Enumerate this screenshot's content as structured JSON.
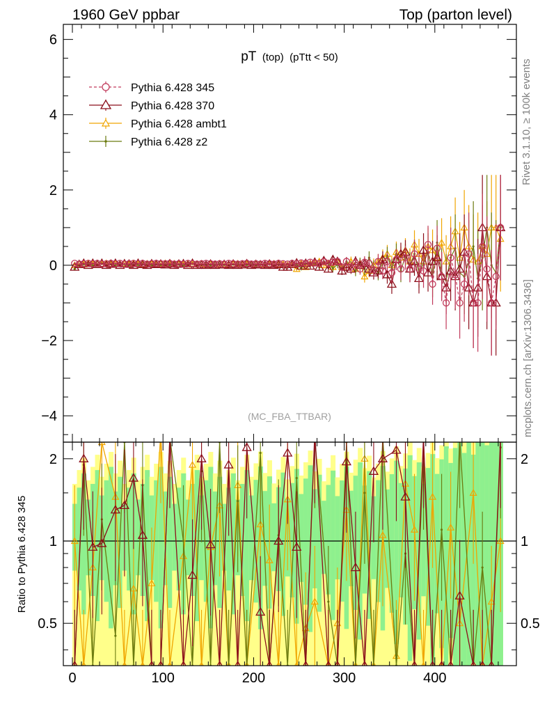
{
  "header": {
    "left": "1960 GeV ppbar",
    "right": "Top (parton level)"
  },
  "side_labels": {
    "rivet": "Rivet 3.1.10, ≥ 100k events",
    "mcplots": "mcplots.cern.ch [arXiv:1306.3436]"
  },
  "chart_data": {
    "type": "line",
    "title_main": "pT",
    "title_sub": "(top)",
    "title_cut": "(pTtt < 50)",
    "analysis": "(MC_FBA_TTBAR)",
    "xlim": [
      -10,
      490
    ],
    "ylim": [
      -4.7,
      6.4
    ],
    "yticks": [
      -4,
      -2,
      0,
      2,
      4,
      6
    ],
    "xticks": [
      0,
      100,
      200,
      300,
      400
    ],
    "ratio_ylabel": "Ratio to Pythia 6.428 345",
    "ratio_ylim": [
      0.35,
      2.3
    ],
    "ratio_yticks": [
      0.5,
      1,
      2
    ],
    "ratio_ytick_labels": [
      "0.5",
      "1",
      "2"
    ],
    "legend_position": "top-left",
    "colors": {
      "p345": "#c0395a",
      "p370": "#8b0e1a",
      "ambt1": "#f0a500",
      "z2": "#6b7a0f",
      "band_green": "#8ef08e",
      "band_yellow": "#ffff8a"
    },
    "series": [
      {
        "name": "Pythia 6.428 345",
        "key": "p345",
        "marker": "circle",
        "dashed": true
      },
      {
        "name": "Pythia 6.428 370",
        "key": "p370",
        "marker": "triangle",
        "dashed": false
      },
      {
        "name": "Pythia 6.428 ambt1",
        "key": "ambt1",
        "marker": "triangle-small",
        "dashed": false
      },
      {
        "name": "Pythia 6.428 z2",
        "key": "z2",
        "marker": "dot",
        "dashed": false
      }
    ],
    "x": [
      2.5,
      7.5,
      12.5,
      17.5,
      22.5,
      27.5,
      32.5,
      37.5,
      42.5,
      47.5,
      52.5,
      57.5,
      62.5,
      67.5,
      72.5,
      77.5,
      82.5,
      87.5,
      92.5,
      97.5,
      102.5,
      107.5,
      112.5,
      117.5,
      122.5,
      127.5,
      132.5,
      137.5,
      142.5,
      147.5,
      152.5,
      157.5,
      162.5,
      167.5,
      172.5,
      177.5,
      182.5,
      187.5,
      192.5,
      197.5,
      202.5,
      207.5,
      212.5,
      217.5,
      222.5,
      227.5,
      232.5,
      237.5,
      242.5,
      247.5,
      252.5,
      257.5,
      262.5,
      267.5,
      272.5,
      277.5,
      282.5,
      287.5,
      292.5,
      297.5,
      302.5,
      307.5,
      312.5,
      317.5,
      322.5,
      327.5,
      332.5,
      337.5,
      342.5,
      347.5,
      352.5,
      357.5,
      362.5,
      367.5,
      372.5,
      377.5,
      382.5,
      387.5,
      392.5,
      397.5,
      402.5,
      407.5,
      412.5,
      417.5,
      422.5,
      427.5,
      432.5,
      437.5,
      442.5,
      447.5,
      452.5,
      457.5,
      462.5,
      467.5,
      472.5
    ],
    "values": {
      "p345": [
        0.05,
        0.03,
        0.04,
        0.05,
        0.04,
        0.05,
        0.03,
        0.04,
        0.05,
        0.04,
        0.05,
        0.03,
        0.04,
        0.05,
        0.04,
        0.05,
        0.03,
        0.04,
        0.05,
        0.04,
        0.04,
        0.05,
        0.03,
        0.04,
        0.03,
        0.05,
        0.04,
        0.03,
        0.04,
        0.05,
        0.04,
        0.03,
        0.04,
        0.03,
        0.05,
        0.04,
        0.03,
        0.04,
        0.05,
        0.03,
        0.04,
        0.03,
        0.05,
        0.04,
        0.03,
        0.05,
        0.04,
        0.03,
        0.05,
        0.04,
        0.06,
        0.05,
        0.08,
        0.06,
        0.05,
        0.1,
        0.05,
        0.08,
        0.1,
        -0.05,
        0.1,
        -0.05,
        0.05,
        -0.1,
        0.08,
        0.05,
        -0.12,
        0.1,
        -0.15,
        0.1,
        -0.2,
        0.15,
        -0.1,
        0.2,
        -0.1,
        0.3,
        -0.1,
        -0.15,
        0.55,
        -0.5,
        0.45,
        -0.3,
        -1.0,
        0.2,
        -0.25,
        -1.0,
        -0.5,
        0.3,
        -1.0,
        -1.0,
        0.5,
        -0.1,
        -1.0,
        -0.3,
        1.0
      ],
      "p370": [
        -0.05,
        0.02,
        0.05,
        0.0,
        0.05,
        0.02,
        0.05,
        0.0,
        0.03,
        0.05,
        0.0,
        0.04,
        0.03,
        0.0,
        0.05,
        0.02,
        0.0,
        0.04,
        0.02,
        0.03,
        0.01,
        0.04,
        0.0,
        0.03,
        0.04,
        0.0,
        0.05,
        0.0,
        0.01,
        0.0,
        0.03,
        0.0,
        0.01,
        0.02,
        0.0,
        0.03,
        0.0,
        0.01,
        0.04,
        0.0,
        0.02,
        0.01,
        0.0,
        0.03,
        0.0,
        0.02,
        -0.05,
        -0.05,
        0.02,
        0.06,
        -0.02,
        0.05,
        -0.02,
        0.08,
        -0.05,
        0.12,
        -0.1,
        0.15,
        0.1,
        -0.15,
        -0.05,
        -0.1,
        0.1,
        0.0,
        0.05,
        -0.1,
        -0.2,
        -0.15,
        0.15,
        -0.25,
        -0.5,
        0.15,
        0.3,
        0.35,
        -0.1,
        0.1,
        -0.35,
        0.4,
        -0.2,
        0.1,
        0.2,
        -0.3,
        -0.6,
        -0.15,
        -0.3,
        -0.1,
        0.35,
        -0.6,
        -1.0,
        -0.6,
        1.0,
        -0.3,
        -1.0,
        -1.0,
        1.0
      ],
      "ambt1": [
        0.0,
        0.04,
        0.02,
        0.05,
        0.03,
        0.04,
        0.03,
        0.05,
        0.02,
        0.04,
        0.03,
        0.04,
        0.02,
        0.05,
        0.03,
        0.02,
        0.04,
        0.03,
        0.02,
        0.04,
        0.05,
        0.02,
        0.04,
        0.03,
        0.02,
        0.04,
        0.02,
        0.03,
        0.04,
        0.02,
        0.03,
        0.02,
        0.04,
        0.03,
        0.02,
        0.03,
        0.04,
        0.02,
        0.03,
        0.02,
        0.04,
        0.03,
        0.02,
        0.03,
        0.04,
        0.02,
        0.03,
        0.0,
        0.0,
        -0.1,
        0.05,
        -0.05,
        0.05,
        0.08,
        0.1,
        0.0,
        0.05,
        -0.05,
        0.1,
        -0.05,
        0.0,
        0.1,
        -0.1,
        0.05,
        -0.3,
        -0.15,
        0.0,
        0.1,
        0.2,
        0.3,
        0.0,
        0.35,
        0.2,
        0.4,
        0.1,
        0.55,
        0.3,
        0.1,
        0.5,
        0.4,
        0.2,
        0.6,
        0.1,
        0.5,
        0.9,
        0.2,
        1.0,
        0.5,
        0.15,
        0.1,
        0.5,
        0.3,
        1.0,
        1.0,
        0.7
      ],
      "z2": [
        -0.1,
        0.0,
        0.02,
        0.04,
        0.0,
        0.02,
        0.04,
        0.01,
        0.03,
        0.0,
        0.04,
        0.02,
        0.0,
        0.03,
        0.01,
        0.04,
        0.02,
        0.0,
        0.03,
        0.01,
        0.02,
        0.0,
        0.04,
        0.02,
        0.0,
        0.02,
        0.04,
        0.0,
        0.01,
        0.03,
        0.0,
        0.02,
        0.04,
        0.01,
        0.0,
        0.02,
        0.03,
        0.0,
        0.01,
        0.03,
        0.0,
        0.02,
        0.01,
        0.03,
        0.0,
        0.02,
        0.01,
        -0.05,
        0.0,
        0.02,
        -0.08,
        0.05,
        0.0,
        0.05,
        -0.05,
        0.1,
        0.05,
        -0.08,
        0.02,
        -0.12,
        0.1,
        -0.02,
        -0.15,
        0.05,
        -0.1,
        0.2,
        -0.05,
        -0.2,
        0.05,
        0.25,
        -0.1,
        0.3,
        -0.15,
        0.25,
        0.0,
        0.3,
        -0.2,
        0.05,
        0.35,
        -0.3,
        0.6,
        -0.2,
        -0.4,
        0.2,
        0.45,
        -0.2,
        -0.3,
        0.1,
        0.5,
        -0.35,
        0.2,
        1.0,
        0.0,
        -0.2,
        1.0
      ]
    },
    "errors": [
      0.03,
      0.03,
      0.03,
      0.03,
      0.03,
      0.03,
      0.03,
      0.03,
      0.03,
      0.03,
      0.03,
      0.03,
      0.03,
      0.03,
      0.03,
      0.03,
      0.03,
      0.03,
      0.03,
      0.03,
      0.03,
      0.03,
      0.03,
      0.03,
      0.03,
      0.03,
      0.03,
      0.03,
      0.03,
      0.03,
      0.03,
      0.03,
      0.03,
      0.03,
      0.03,
      0.03,
      0.03,
      0.03,
      0.03,
      0.03,
      0.04,
      0.04,
      0.04,
      0.04,
      0.04,
      0.04,
      0.05,
      0.05,
      0.05,
      0.06,
      0.06,
      0.07,
      0.07,
      0.08,
      0.08,
      0.09,
      0.09,
      0.1,
      0.1,
      0.11,
      0.12,
      0.13,
      0.14,
      0.15,
      0.16,
      0.17,
      0.18,
      0.2,
      0.22,
      0.24,
      0.26,
      0.28,
      0.3,
      0.32,
      0.35,
      0.38,
      0.4,
      0.45,
      0.5,
      0.55,
      0.6,
      0.65,
      0.7,
      0.8,
      0.9,
      0.95,
      1.0,
      1.1,
      1.2,
      1.3,
      1.4,
      1.4,
      1.4,
      1.4,
      1.4
    ],
    "ratio_values": {
      "p370": [
        0.35,
        2.0,
        0.95,
        0.98,
        1.3,
        1.35,
        1.7,
        1.05,
        0.35,
        0.35,
        2.4,
        0.35,
        0.75,
        2.0,
        0.97,
        0.35,
        1.9,
        0.35,
        2.2,
        0.55,
        0.35,
        1.0,
        2.1,
        0.95,
        0.35,
        2.5,
        0.35,
        0.35,
        1.95,
        0.8,
        0.35,
        1.8,
        2.0,
        2.15,
        1.45,
        0.35,
        2.4,
        0.35,
        0.35,
        0.35,
        0.63,
        0.35,
        0.35,
        0.35,
        2.4
      ],
      "ambt1": [
        1.0,
        0.35,
        0.8,
        2.3,
        1.45,
        0.35,
        0.67,
        0.35,
        0.7,
        2.5,
        0.35,
        0.88,
        1.9,
        0.35,
        0.95,
        1.35,
        0.35,
        1.6,
        0.35,
        1.15,
        0.85,
        0.35,
        1.42,
        0.35,
        0.48,
        0.6,
        0.35,
        0.5,
        1.3,
        0.35,
        2.0,
        0.35,
        1.05,
        0.38,
        1.62,
        1.1,
        0.35,
        1.45,
        0.35,
        1.12,
        0.5,
        1.5,
        0.35,
        0.6,
        1.0
      ],
      "z2": [
        0.35,
        1.9,
        0.35,
        1.2,
        0.45,
        2.3,
        0.35,
        1.6,
        0.35,
        0.35,
        2.4,
        1.0,
        0.35,
        1.8,
        0.35,
        2.3,
        0.35,
        1.4,
        0.35,
        2.1,
        0.35,
        1.05,
        0.35,
        1.7,
        0.35,
        2.4,
        0.6,
        0.35,
        2.3,
        0.35,
        1.5,
        0.35,
        2.4,
        0.35,
        0.9,
        0.35,
        2.0,
        0.35,
        1.1,
        0.35,
        2.4,
        0.35,
        0.8,
        0.35,
        2.2
      ]
    }
  }
}
